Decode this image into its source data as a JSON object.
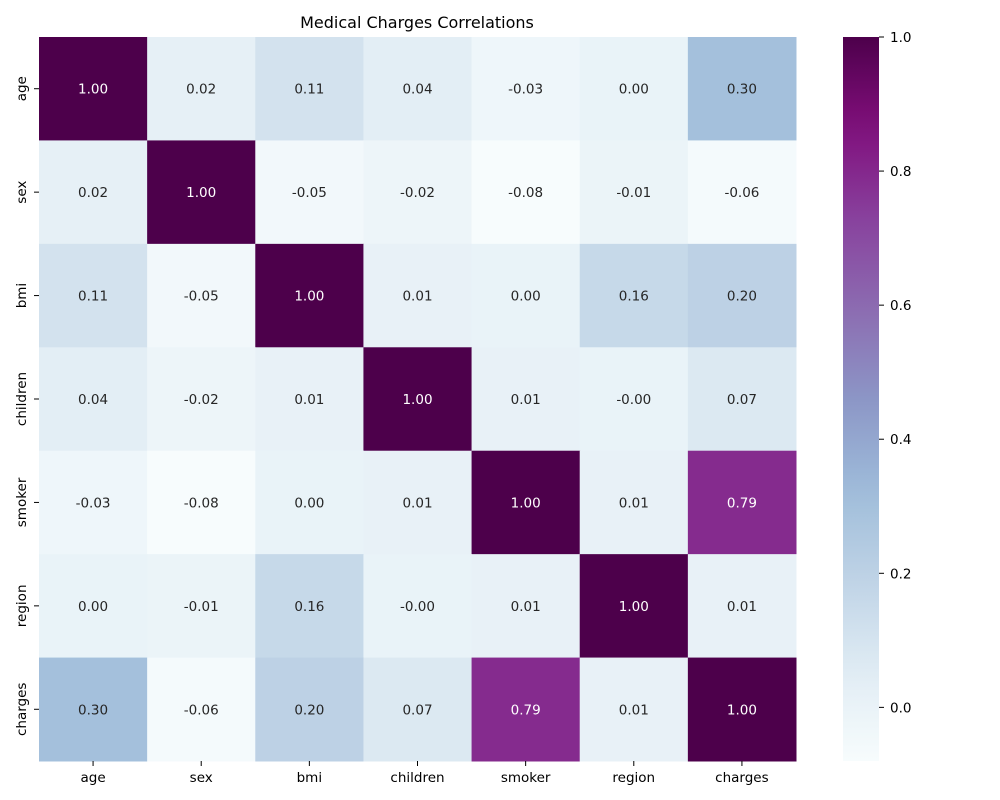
{
  "chart_data": {
    "type": "heatmap",
    "title": "Medical Charges Correlations",
    "x_labels": [
      "age",
      "sex",
      "bmi",
      "children",
      "smoker",
      "region",
      "charges"
    ],
    "y_labels": [
      "age",
      "sex",
      "bmi",
      "children",
      "smoker",
      "region",
      "charges"
    ],
    "values": [
      [
        1.0,
        0.02,
        0.11,
        0.04,
        -0.03,
        0.0,
        0.3
      ],
      [
        0.02,
        1.0,
        -0.05,
        -0.02,
        -0.08,
        -0.01,
        -0.06
      ],
      [
        0.11,
        -0.05,
        1.0,
        0.01,
        0.0,
        0.16,
        0.2
      ],
      [
        0.04,
        -0.02,
        0.01,
        1.0,
        0.01,
        -0.0,
        0.07
      ],
      [
        -0.03,
        -0.08,
        0.0,
        0.01,
        1.0,
        0.01,
        0.79
      ],
      [
        0.0,
        -0.01,
        0.16,
        -0.0,
        0.01,
        1.0,
        0.01
      ],
      [
        0.3,
        -0.06,
        0.2,
        0.07,
        0.79,
        0.01,
        1.0
      ]
    ],
    "value_labels": [
      [
        "1.00",
        "0.02",
        "0.11",
        "0.04",
        "-0.03",
        "0.00",
        "0.30"
      ],
      [
        "0.02",
        "1.00",
        "-0.05",
        "-0.02",
        "-0.08",
        "-0.01",
        "-0.06"
      ],
      [
        "0.11",
        "-0.05",
        "1.00",
        "0.01",
        "0.00",
        "0.16",
        "0.20"
      ],
      [
        "0.04",
        "-0.02",
        "0.01",
        "1.00",
        "0.01",
        "-0.00",
        "0.07"
      ],
      [
        "-0.03",
        "-0.08",
        "0.00",
        "0.01",
        "1.00",
        "0.01",
        "0.79"
      ],
      [
        "0.00",
        "-0.01",
        "0.16",
        "-0.00",
        "0.01",
        "1.00",
        "0.01"
      ],
      [
        "0.30",
        "-0.06",
        "0.20",
        "0.07",
        "0.79",
        "0.01",
        "1.00"
      ]
    ],
    "colormap": "BuPu",
    "color_range": [
      -0.08,
      1.0
    ],
    "colorbar_ticks": [
      0.0,
      0.2,
      0.4,
      0.6,
      0.8,
      1.0
    ],
    "colorbar_tick_labels": [
      "0.0",
      "0.2",
      "0.4",
      "0.6",
      "0.8",
      "1.0"
    ]
  }
}
